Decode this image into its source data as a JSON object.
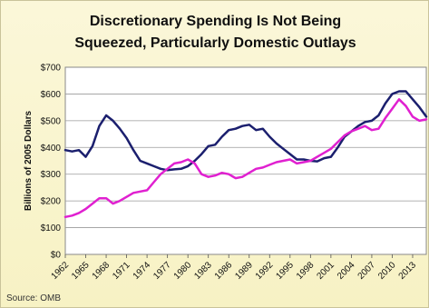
{
  "chart_data": {
    "type": "line",
    "title": "Discretionary Spending Is Not Being Squeezed, Particularly Domestic Outlays",
    "title_lines": [
      "Discretionary Spending Is Not Being",
      "Squeezed, Particularly Domestic Outlays"
    ],
    "ylabel": "Billions of 2005 Dollars",
    "ylim": [
      0,
      700
    ],
    "xlim": [
      1962,
      2015
    ],
    "y_ticks": [
      "$0",
      "$100",
      "$200",
      "$300",
      "$400",
      "$500",
      "$600",
      "$700"
    ],
    "y_tick_values": [
      0,
      100,
      200,
      300,
      400,
      500,
      600,
      700
    ],
    "x_ticks": [
      1962,
      1965,
      1968,
      1971,
      1974,
      1977,
      1980,
      1983,
      1986,
      1989,
      1992,
      1995,
      1998,
      2001,
      2004,
      2007,
      2010,
      2013
    ],
    "grid": true,
    "legend": "none",
    "source": "Source: OMB",
    "series": [
      {
        "color": "#1b1f6e",
        "x": [
          1962,
          1963,
          1964,
          1965,
          1966,
          1967,
          1968,
          1969,
          1970,
          1971,
          1972,
          1973,
          1974,
          1975,
          1976,
          1977,
          1978,
          1979,
          1980,
          1981,
          1982,
          1983,
          1984,
          1985,
          1986,
          1987,
          1988,
          1989,
          1990,
          1991,
          1992,
          1993,
          1994,
          1995,
          1996,
          1997,
          1998,
          1999,
          2000,
          2001,
          2002,
          2003,
          2004,
          2005,
          2006,
          2007,
          2008,
          2009,
          2010,
          2011,
          2012,
          2013,
          2014,
          2015
        ],
        "values": [
          390,
          385,
          390,
          365,
          405,
          480,
          520,
          500,
          470,
          435,
          390,
          350,
          340,
          330,
          320,
          315,
          318,
          320,
          330,
          350,
          375,
          405,
          410,
          440,
          465,
          470,
          480,
          485,
          465,
          470,
          440,
          415,
          395,
          375,
          355,
          355,
          350,
          348,
          360,
          365,
          400,
          440,
          460,
          480,
          495,
          500,
          520,
          565,
          600,
          610,
          610,
          580,
          550,
          515
        ]
      },
      {
        "color": "#e020d0",
        "x": [
          1962,
          1963,
          1964,
          1965,
          1966,
          1967,
          1968,
          1969,
          1970,
          1971,
          1972,
          1973,
          1974,
          1975,
          1976,
          1977,
          1978,
          1979,
          1980,
          1981,
          1982,
          1983,
          1984,
          1985,
          1986,
          1987,
          1988,
          1989,
          1990,
          1991,
          1992,
          1993,
          1994,
          1995,
          1996,
          1997,
          1998,
          1999,
          2000,
          2001,
          2002,
          2003,
          2004,
          2005,
          2006,
          2007,
          2008,
          2009,
          2010,
          2011,
          2012,
          2013,
          2014,
          2015
        ],
        "values": [
          140,
          145,
          155,
          170,
          190,
          210,
          210,
          190,
          200,
          215,
          230,
          235,
          240,
          270,
          300,
          320,
          340,
          345,
          355,
          340,
          300,
          290,
          295,
          305,
          300,
          285,
          290,
          305,
          320,
          325,
          335,
          345,
          350,
          355,
          340,
          345,
          350,
          365,
          380,
          395,
          420,
          445,
          460,
          470,
          480,
          465,
          470,
          510,
          545,
          580,
          555,
          515,
          500,
          505
        ]
      }
    ]
  }
}
